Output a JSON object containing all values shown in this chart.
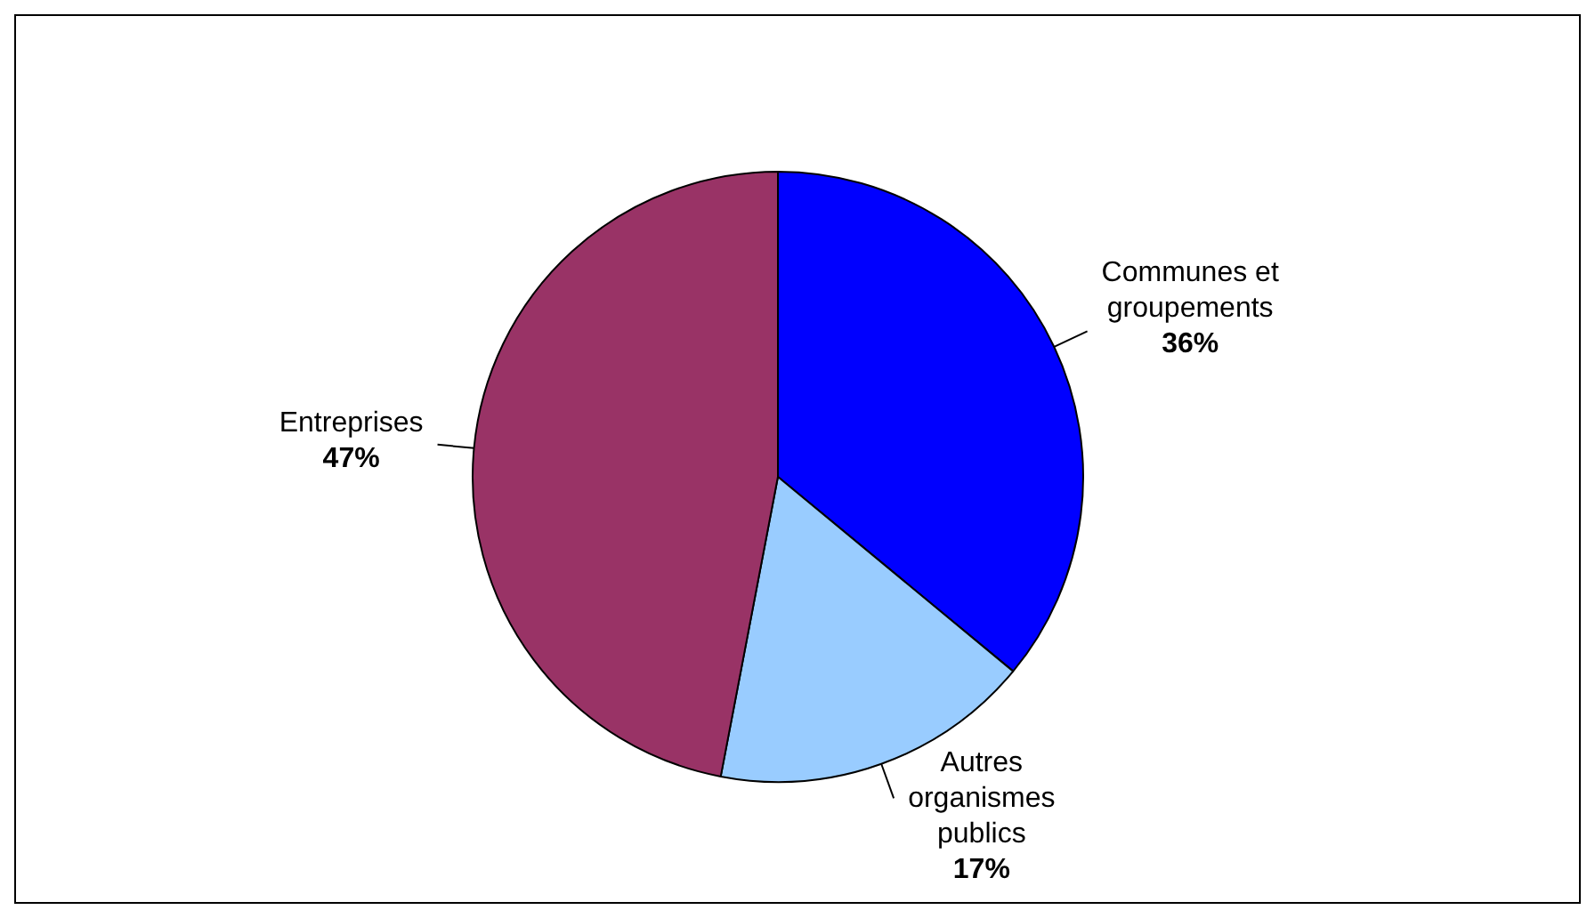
{
  "chart_data": {
    "type": "pie",
    "categories": [
      "Communes et groupements",
      "Autres organismes publics",
      "Entreprises"
    ],
    "values": [
      36,
      17,
      47
    ],
    "colors": [
      "#0000ff",
      "#99ccff",
      "#993366"
    ],
    "value_labels": [
      "36%",
      "17%",
      "47%"
    ],
    "legend": false
  }
}
